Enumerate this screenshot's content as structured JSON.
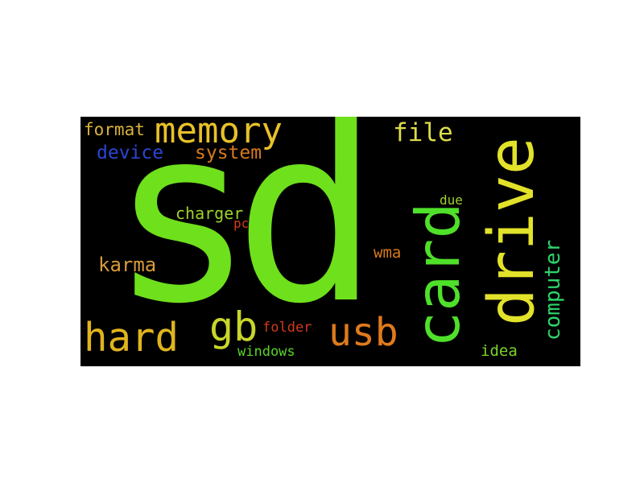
{
  "wordcloud": {
    "background": "#000000",
    "words": [
      {
        "id": "sd",
        "text": "sd",
        "color": "#6fe01c"
      },
      {
        "id": "memory",
        "text": "memory",
        "color": "#e8c12a"
      },
      {
        "id": "card",
        "text": "card",
        "color": "#4fe02a"
      },
      {
        "id": "drive",
        "text": "drive",
        "color": "#e2e22a"
      },
      {
        "id": "hard",
        "text": "hard",
        "color": "#e0b41e"
      },
      {
        "id": "gb",
        "text": "gb",
        "color": "#c8d62a"
      },
      {
        "id": "usb",
        "text": "usb",
        "color": "#e07a1c"
      },
      {
        "id": "file",
        "text": "file",
        "color": "#dcdc4a"
      },
      {
        "id": "computer",
        "text": "computer",
        "color": "#2ed46a"
      },
      {
        "id": "format",
        "text": "format",
        "color": "#d8b43a"
      },
      {
        "id": "device",
        "text": "device",
        "color": "#2a46d6"
      },
      {
        "id": "system",
        "text": "system",
        "color": "#d87a1c"
      },
      {
        "id": "charger",
        "text": "charger",
        "color": "#9ed22a"
      },
      {
        "id": "pc",
        "text": "pc",
        "color": "#d23a1c"
      },
      {
        "id": "karma",
        "text": "karma",
        "color": "#d89a3a"
      },
      {
        "id": "due",
        "text": "due",
        "color": "#9ed22a"
      },
      {
        "id": "wma",
        "text": "wma",
        "color": "#d87a1c"
      },
      {
        "id": "folder",
        "text": "folder",
        "color": "#d23a1c"
      },
      {
        "id": "windows",
        "text": "windows",
        "color": "#5ad42a"
      },
      {
        "id": "idea",
        "text": "idea",
        "color": "#7ad42a"
      }
    ]
  }
}
